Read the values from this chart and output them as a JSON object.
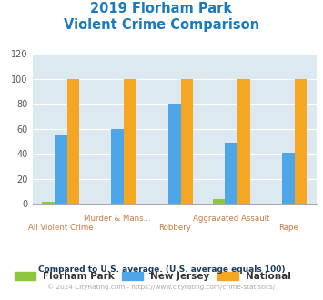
{
  "title_line1": "2019 Florham Park",
  "title_line2": "Violent Crime Comparison",
  "title_color": "#1a7abf",
  "florham_park": [
    2,
    0,
    0,
    4,
    0
  ],
  "new_jersey": [
    55,
    60,
    80,
    49,
    41
  ],
  "national": [
    100,
    100,
    100,
    100,
    100
  ],
  "fp_color": "#8dc63f",
  "nj_color": "#4da6e8",
  "nat_color": "#f5a623",
  "ylim": [
    0,
    120
  ],
  "yticks": [
    0,
    20,
    40,
    60,
    80,
    100,
    120
  ],
  "background_color": "#dce9f0",
  "grid_color": "#ffffff",
  "legend_fp": "Florham Park",
  "legend_nj": "New Jersey",
  "legend_nat": "National",
  "footnote1": "Compared to U.S. average. (U.S. average equals 100)",
  "footnote2": "© 2024 CityRating.com - https://www.cityrating.com/crime-statistics/",
  "footnote1_color": "#1a3a5c",
  "footnote2_color": "#aaaaaa",
  "label_color": "#c87941",
  "labels_top": [
    "",
    "Murder & Mans...",
    "",
    "Aggravated Assault",
    ""
  ],
  "labels_bottom": [
    "All Violent Crime",
    "",
    "Robbery",
    "",
    "Rape"
  ]
}
